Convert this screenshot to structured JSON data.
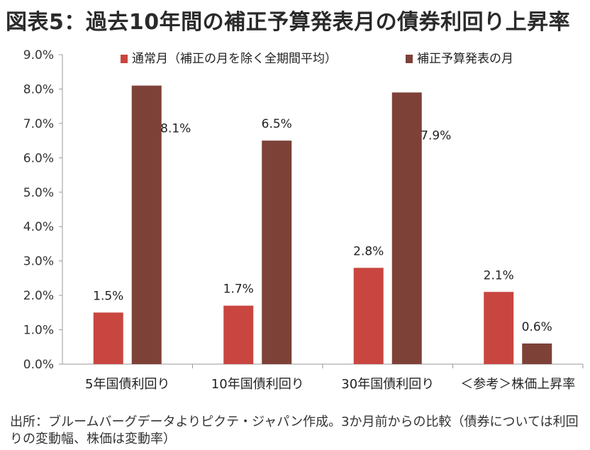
{
  "title": "図表5：過去10年間の補正予算発表月の債券利回り上昇率",
  "source_note": "出所：ブルームバーグデータよりピクテ・ジャパン作成。3か月前からの比較（債券については利回りの変動幅、株価は変動率）",
  "chart_data": {
    "type": "bar",
    "categories": [
      "5年国債利回り",
      "10年国債利回り",
      "30年国債利回り",
      "＜参考＞株価上昇率"
    ],
    "series": [
      {
        "name": "通常月（補正の月を除く全期間平均）",
        "values": [
          1.5,
          1.7,
          2.8,
          2.1
        ],
        "labels": [
          "1.5%",
          "1.7%",
          "2.8%",
          "2.1%"
        ],
        "color": "#c8463f"
      },
      {
        "name": "補正予算発表の月",
        "values": [
          8.1,
          6.5,
          7.9,
          0.6
        ],
        "labels": [
          "8.1%",
          "6.5%",
          "7.9%",
          "0.6%"
        ],
        "color": "#7d4138"
      }
    ],
    "ylim": [
      0,
      9
    ],
    "yticks": [
      "0.0%",
      "1.0%",
      "2.0%",
      "3.0%",
      "4.0%",
      "5.0%",
      "6.0%",
      "7.0%",
      "8.0%",
      "9.0%"
    ],
    "grid": false,
    "legend_position": "top"
  }
}
